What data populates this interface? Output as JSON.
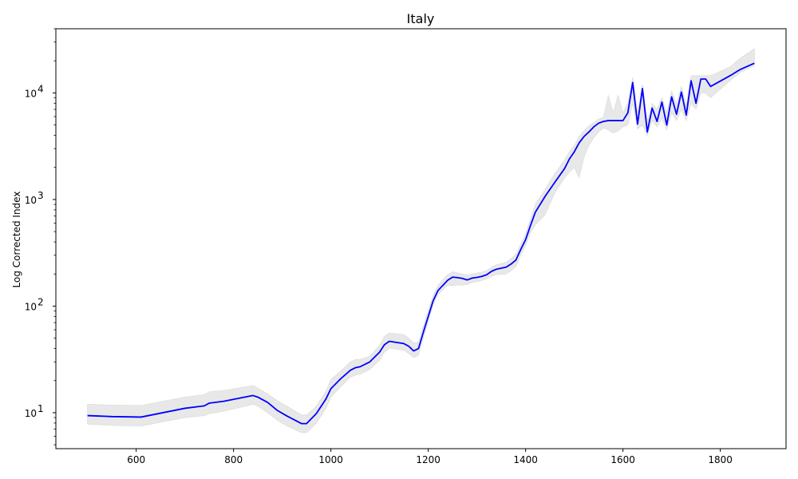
{
  "chart_data": {
    "type": "line",
    "title": "Italy",
    "xlabel": "",
    "ylabel": "Log Corrected Index",
    "yscale": "log",
    "xlim": [
      435,
      1935
    ],
    "ylim": [
      4.6,
      40000
    ],
    "grid": false,
    "legend": "none",
    "x_ticks": [
      {
        "value": 600,
        "label": "600"
      },
      {
        "value": 800,
        "label": "800"
      },
      {
        "value": 1000,
        "label": "1000"
      },
      {
        "value": 1200,
        "label": "1200"
      },
      {
        "value": 1400,
        "label": "1400"
      },
      {
        "value": 1600,
        "label": "1600"
      },
      {
        "value": 1800,
        "label": "1800"
      }
    ],
    "y_ticks": [
      {
        "value": 10,
        "base": "10",
        "exp": "1"
      },
      {
        "value": 100,
        "base": "10",
        "exp": "2"
      },
      {
        "value": 1000,
        "base": "10",
        "exp": "3"
      },
      {
        "value": 10000,
        "base": "10",
        "exp": "4"
      }
    ],
    "colors": {
      "line": "#0000ff",
      "band": "#e8e8e8",
      "band_edge": "#d8d8d8",
      "axes": "#000000"
    },
    "series": [
      {
        "x": [
          500,
          550,
          610,
          700,
          740,
          750,
          780,
          840,
          850,
          870,
          890,
          910,
          940,
          950,
          970,
          990,
          1000,
          1020,
          1040,
          1050,
          1060,
          1080,
          1100,
          1110,
          1120,
          1150,
          1160,
          1170,
          1180,
          1190,
          1200,
          1210,
          1220,
          1240,
          1250,
          1260,
          1270,
          1280,
          1290,
          1300,
          1310,
          1320,
          1330,
          1340,
          1360,
          1370,
          1380,
          1390,
          1400,
          1410,
          1420,
          1440,
          1460,
          1480,
          1490,
          1500,
          1510,
          1520,
          1530,
          1540,
          1550,
          1560,
          1570,
          1580,
          1590,
          1600,
          1610,
          1620,
          1630,
          1640,
          1650,
          1660,
          1670,
          1680,
          1690,
          1700,
          1710,
          1720,
          1730,
          1740,
          1750,
          1760,
          1770,
          1780,
          1820,
          1840,
          1870
        ],
        "y": [
          9.4,
          9.2,
          9.1,
          11,
          11.6,
          12.3,
          12.8,
          14.5,
          14,
          12.5,
          10.5,
          9.3,
          7.9,
          7.9,
          9.8,
          13.5,
          16.8,
          20.8,
          25,
          26.4,
          27,
          30,
          37,
          43.5,
          46.8,
          44.5,
          42,
          38,
          40,
          57,
          80,
          112,
          140,
          175,
          187,
          185,
          182,
          176,
          183,
          186,
          190,
          197,
          212,
          222,
          232,
          248,
          270,
          340,
          420,
          570,
          760,
          1070,
          1450,
          1950,
          2400,
          2800,
          3400,
          3900,
          4300,
          4800,
          5200,
          5400,
          5500,
          5500,
          5500,
          5500,
          6500,
          12500,
          5100,
          11000,
          4300,
          7200,
          5400,
          8200,
          5000,
          9200,
          6300,
          10200,
          6200,
          13000,
          8000,
          13500,
          13500,
          11500,
          14500,
          16500,
          19000
        ],
        "lower": [
          7.8,
          7.6,
          7.5,
          9.0,
          9.4,
          9.8,
          10.3,
          12.0,
          11.5,
          10.0,
          8.5,
          7.5,
          6.5,
          6.5,
          8.0,
          11.0,
          14.0,
          17.5,
          21.5,
          22.5,
          23.0,
          25.5,
          31.0,
          37.0,
          40.5,
          38.5,
          36.0,
          33.0,
          34.5,
          50.0,
          72.0,
          103.0,
          128.0,
          158.0,
          155.0,
          158.0,
          157.0,
          160.0,
          167.0,
          170.0,
          174.0,
          180.0,
          190.0,
          197.0,
          200.0,
          215.0,
          235.0,
          300.0,
          370.0,
          490.0,
          580.0,
          720.0,
          1150.0,
          1600.0,
          1800.0,
          2000.0,
          1600.0,
          2500.0,
          3200.0,
          3800.0,
          4300.0,
          4700.0,
          4500.0,
          4200.0,
          4400.0,
          4800.0,
          5000.0,
          8000.0,
          4600.0,
          5000.0,
          4000.0,
          5500.0,
          4800.0,
          5800.0,
          4500.0,
          6500.0,
          5500.0,
          7000.0,
          5500.0,
          8000.0,
          7000.0,
          10000.0,
          10000.0,
          9000.0,
          13000.0,
          15500.0,
          18000.0
        ],
        "upper": [
          12.0,
          11.8,
          11.7,
          14.0,
          14.8,
          15.7,
          16.2,
          18.0,
          17.0,
          15.0,
          13.0,
          11.5,
          9.5,
          9.5,
          11.5,
          16.0,
          20.5,
          24.5,
          30.0,
          31.5,
          31.5,
          34.0,
          43.0,
          52.0,
          56.0,
          54.0,
          50.0,
          45.0,
          46.0,
          65.0,
          91.0,
          126.0,
          157.0,
          198.0,
          210.0,
          205.0,
          200.0,
          196.0,
          200.0,
          204.0,
          208.0,
          216.0,
          232.0,
          244.0,
          258.0,
          280.0,
          306.0,
          380.0,
          480.0,
          650.0,
          900.0,
          1250.0,
          1750.0,
          2350.0,
          2800.0,
          3200.0,
          3900.0,
          4400.0,
          4900.0,
          5300.0,
          5700.0,
          5900.0,
          9500.0,
          6500.0,
          9500.0,
          6500.0,
          8000.0,
          14000.0,
          6500.0,
          12000.0,
          5500.0,
          8000.0,
          7000.0,
          9000.0,
          6500.0,
          10500.0,
          7800.0,
          11500.0,
          7500.0,
          14500.0,
          14500.0,
          14500.0,
          14500.0,
          14500.0,
          17500.0,
          21000.0,
          26000.0
        ]
      }
    ]
  }
}
